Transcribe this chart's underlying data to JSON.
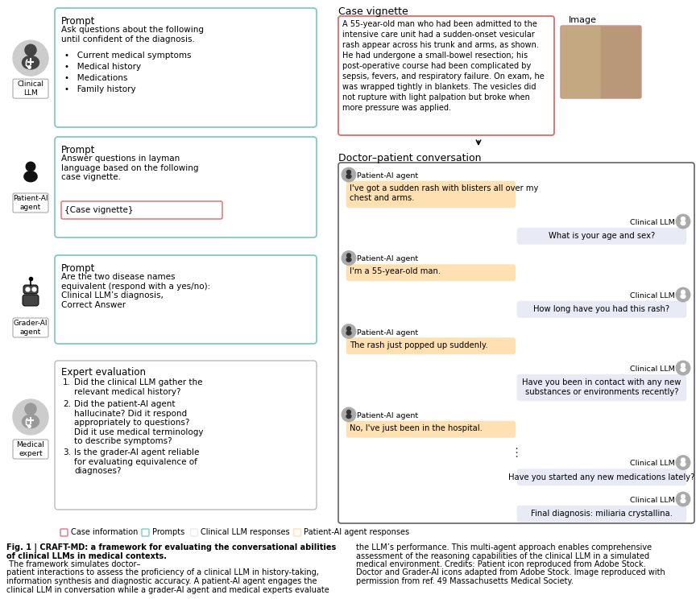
{
  "background_color": "#ffffff",
  "left_panel": {
    "clinical_llm": {
      "prompt_title": "Prompt",
      "prompt_text": "Ask questions about the following\nuntil confident of the diagnosis.",
      "bullets": [
        "Current medical symptoms",
        "Medical history",
        "Medications",
        "Family history"
      ],
      "label": "Clinical\nLLM",
      "box_color": "#80cbc4"
    },
    "patient_ai": {
      "prompt_title": "Prompt",
      "prompt_text": "Answer questions in layman\nlanguage based on the following\ncase vignette.",
      "inner_box_text": "{Case vignette}",
      "label": "Patient-AI\nagent",
      "box_color": "#80cbc4",
      "inner_box_color": "#e57373"
    },
    "grader_ai": {
      "prompt_title": "Prompt",
      "prompt_text": "Are the two disease names\nequivalent (respond with a yes/no):\nClinical LLM’s diagnosis,\nCorrect Answer",
      "label": "Grader-AI\nagent",
      "box_color": "#80cbc4"
    },
    "medical_expert": {
      "eval_title": "Expert evaluation",
      "eval_items": [
        "Did the clinical LLM gather the\nrelevant medical history?",
        "Did the patient-AI agent\nhallucinate? Did it respond\nappropriately to questions?\nDid it use medical terminology\nto describe symptoms?",
        "Is the grader-AI agent reliable\nfor evaluating equivalence of\ndiagnoses?"
      ],
      "label": "Medical\nexpert",
      "box_color": "#dddddd"
    }
  },
  "right_panel": {
    "case_vignette_title": "Case vignette",
    "case_vignette_text": "A 55-year-old man who had been admitted to the\nintensive care unit had a sudden-onset vesicular\nrash appear across his trunk and arms, as shown.\nHe had undergone a small-bowel resection; his\npost-operative course had been complicated by\nsepsis, fevers, and respiratory failure. On exam, he\nwas wrapped tightly in blankets. The vesicles did\nnot rupture with light palpation but broke when\nmore pressure was applied.",
    "case_box_color": "#e57373",
    "image_label": "Image",
    "conversation_title": "Doctor–patient conversation",
    "conversation_box_color": "#555555",
    "messages": [
      {
        "speaker": "Patient-AI agent",
        "text": "I've got a sudden rash with blisters all over my\nchest and arms.",
        "side": "left",
        "color": "#ffe0b2"
      },
      {
        "speaker": "Clinical LLM",
        "text": "What is your age and sex?",
        "side": "right",
        "color": "#e8eaf6"
      },
      {
        "speaker": "Patient-AI agent",
        "text": "I'm a 55-year-old man.",
        "side": "left",
        "color": "#ffe0b2"
      },
      {
        "speaker": "Clinical LLM",
        "text": "How long have you had this rash?",
        "side": "right",
        "color": "#e8eaf6"
      },
      {
        "speaker": "Patient-AI agent",
        "text": "The rash just popped up suddenly.",
        "side": "left",
        "color": "#ffe0b2"
      },
      {
        "speaker": "Clinical LLM",
        "text": "Have you been in contact with any new\nsubstances or environments recently?",
        "side": "right",
        "color": "#e8eaf6"
      },
      {
        "speaker": "Patient-AI agent",
        "text": "No, I've just been in the hospital.",
        "side": "left",
        "color": "#ffe0b2"
      },
      {
        "speaker": "Clinical LLM",
        "text": "Have you started any new medications lately?",
        "side": "right",
        "color": "#e8eaf6"
      },
      {
        "speaker": "Clinical LLM",
        "text": "Final diagnosis: miliaria crystallina.",
        "side": "right",
        "color": "#e8eaf6"
      }
    ]
  },
  "legend": [
    {
      "label": "Case information",
      "color": "#e57373"
    },
    {
      "label": "Prompts",
      "color": "#80cbc4"
    },
    {
      "label": "Clinical LLM responses",
      "color": "#e8eaf6"
    },
    {
      "label": "Patient-AI agent responses",
      "color": "#ffe0b2"
    }
  ],
  "caption_col1_lines": [
    [
      "Fig. 1 | CRAFT-MD: a framework for evaluating the conversational abilities",
      true
    ],
    [
      "of clinical LLMs in medical contexts.",
      true
    ],
    [
      " The framework simulates doctor–",
      false
    ],
    [
      "patient interactions to assess the proficiency of a clinical LLM in history-taking,",
      false
    ],
    [
      "information synthesis and diagnostic accuracy. A patient-AI agent engages the",
      false
    ],
    [
      "clinical LLM in conversation while a grader-AI agent and medical experts evaluate",
      false
    ]
  ],
  "caption_col2_lines": [
    [
      "the LLM’s performance. This multi-agent approach enables comprehensive",
      false
    ],
    [
      "assessment of the reasoning capabilities of the clinical LLM in a simulated",
      false
    ],
    [
      "medical environment. Credits: Patient icon reproduced from Adobe Stock.",
      false
    ],
    [
      "Doctor and Grader-AI icons adapted from Adobe Stock. Image reproduced with",
      false
    ],
    [
      "permission from ref. 49 Massachusetts Medical Society.",
      false
    ]
  ]
}
